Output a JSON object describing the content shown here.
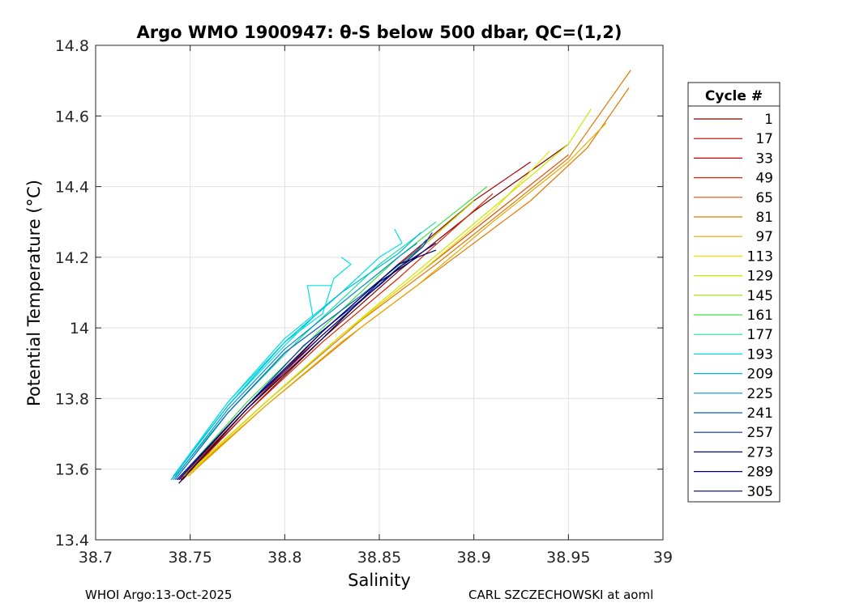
{
  "footer": {
    "left": "WHOI Argo:13-Oct-2025",
    "right": "CARL SZCZECHOWSKI at aoml"
  },
  "chart_data": {
    "type": "line",
    "title": "Argo WMO 1900947: θ-S below 500 dbar,  QC=(1,2)",
    "xlabel": "Salinity",
    "ylabel": "Potential Temperature (°C)",
    "xlim": [
      38.7,
      39
    ],
    "ylim": [
      13.4,
      14.8
    ],
    "xticks": [
      "38.7",
      "38.75",
      "38.8",
      "38.85",
      "38.9",
      "38.95",
      "39"
    ],
    "yticks": [
      "13.4",
      "13.6",
      "13.8",
      "14",
      "14.2",
      "14.4",
      "14.6",
      "14.8"
    ],
    "grid": true,
    "legend": {
      "title": "Cycle #",
      "position": "right-outside",
      "entries": [
        {
          "label": "1",
          "color": "#7a0000"
        },
        {
          "label": "17",
          "color": "#b00000"
        },
        {
          "label": "33",
          "color": "#d00000"
        },
        {
          "label": "49",
          "color": "#e02000"
        },
        {
          "label": "65",
          "color": "#e04a00"
        },
        {
          "label": "81",
          "color": "#e07800"
        },
        {
          "label": "97",
          "color": "#e8a800"
        },
        {
          "label": "113",
          "color": "#f0e000"
        },
        {
          "label": "129",
          "color": "#c8e800"
        },
        {
          "label": "145",
          "color": "#98e000"
        },
        {
          "label": "161",
          "color": "#40e040"
        },
        {
          "label": "177",
          "color": "#20e0a0"
        },
        {
          "label": "193",
          "color": "#00e0e0"
        },
        {
          "label": "209",
          "color": "#00b8e0"
        },
        {
          "label": "225",
          "color": "#0090d0"
        },
        {
          "label": "241",
          "color": "#0060c0"
        },
        {
          "label": "257",
          "color": "#0030b0"
        },
        {
          "label": "273",
          "color": "#000890"
        },
        {
          "label": "289",
          "color": "#000070"
        },
        {
          "label": "305",
          "color": "#000050"
        }
      ]
    },
    "series": [
      {
        "color": "#7a0000",
        "x": [
          38.745,
          38.78,
          38.82,
          38.86,
          38.9,
          38.95
        ],
        "y": [
          13.57,
          13.76,
          13.97,
          14.16,
          14.33,
          14.52
        ]
      },
      {
        "color": "#b00000",
        "x": [
          38.744,
          38.78,
          38.82,
          38.86,
          38.9,
          38.93
        ],
        "y": [
          13.57,
          13.77,
          13.99,
          14.18,
          14.36,
          14.47
        ]
      },
      {
        "color": "#d00000",
        "x": [
          38.745,
          38.78,
          38.82,
          38.86,
          38.9
        ],
        "y": [
          13.57,
          13.77,
          13.98,
          14.17,
          14.36
        ]
      },
      {
        "color": "#e02000",
        "x": [
          38.746,
          38.78,
          38.82,
          38.86,
          38.91
        ],
        "y": [
          13.57,
          13.76,
          13.96,
          14.14,
          14.38
        ]
      },
      {
        "color": "#e04a00",
        "x": [
          38.747,
          38.79,
          38.83,
          38.87,
          38.91,
          38.95
        ],
        "y": [
          13.58,
          13.79,
          13.98,
          14.15,
          14.32,
          14.49
        ]
      },
      {
        "color": "#e07800",
        "x": [
          38.748,
          38.79,
          38.84,
          38.88,
          38.92,
          38.95,
          38.983
        ],
        "y": [
          13.58,
          13.79,
          14.02,
          14.18,
          14.35,
          14.48,
          14.73
        ]
      },
      {
        "color": "#e07800",
        "x": [
          38.748,
          38.79,
          38.84,
          38.88,
          38.93,
          38.96,
          38.982
        ],
        "y": [
          13.58,
          13.78,
          14.0,
          14.16,
          14.36,
          14.51,
          14.68
        ]
      },
      {
        "color": "#e8a800",
        "x": [
          38.749,
          38.79,
          38.83,
          38.87,
          38.91,
          38.95,
          38.97
        ],
        "y": [
          13.58,
          13.78,
          13.96,
          14.12,
          14.3,
          14.47,
          14.58
        ]
      },
      {
        "color": "#f0e000",
        "x": [
          38.748,
          38.79,
          38.83,
          38.87,
          38.91,
          38.94
        ],
        "y": [
          13.58,
          13.79,
          13.98,
          14.15,
          14.33,
          14.5
        ]
      },
      {
        "color": "#c8e800",
        "x": [
          38.747,
          38.79,
          38.83,
          38.87,
          38.91,
          38.95,
          38.962
        ],
        "y": [
          13.58,
          13.79,
          13.98,
          14.16,
          14.34,
          14.52,
          14.62
        ]
      },
      {
        "color": "#98e000",
        "x": [
          38.746,
          38.78,
          38.82,
          38.86,
          38.9
        ],
        "y": [
          13.58,
          13.78,
          13.98,
          14.17,
          14.36
        ]
      },
      {
        "color": "#40e040",
        "x": [
          38.745,
          38.78,
          38.82,
          38.86,
          38.907
        ],
        "y": [
          13.58,
          13.79,
          14.0,
          14.2,
          14.4
        ]
      },
      {
        "color": "#20e0a0",
        "x": [
          38.742,
          38.77,
          38.81,
          38.85,
          38.88
        ],
        "y": [
          13.58,
          13.76,
          13.98,
          14.18,
          14.3
        ]
      },
      {
        "color": "#00e0e0",
        "x": [
          38.741,
          38.77,
          38.8,
          38.815,
          38.812,
          38.825
        ],
        "y": [
          13.58,
          13.78,
          13.95,
          14.03,
          14.12,
          14.12
        ]
      },
      {
        "color": "#00e0e0",
        "x": [
          38.741,
          38.77,
          38.8,
          38.82,
          38.826,
          38.835,
          38.83
        ],
        "y": [
          13.58,
          13.79,
          13.96,
          14.04,
          14.14,
          14.18,
          14.2
        ]
      },
      {
        "color": "#00e0e0",
        "x": [
          38.74,
          38.77,
          38.8,
          38.83,
          38.85,
          38.862,
          38.858
        ],
        "y": [
          13.57,
          13.79,
          13.97,
          14.1,
          14.2,
          14.24,
          14.28
        ]
      },
      {
        "color": "#00b8e0",
        "x": [
          38.74,
          38.77,
          38.8,
          38.83,
          38.86,
          38.872
        ],
        "y": [
          13.57,
          13.78,
          13.96,
          14.1,
          14.21,
          14.27
        ]
      },
      {
        "color": "#0090d0",
        "x": [
          38.741,
          38.77,
          38.8,
          38.83,
          38.86,
          38.87
        ],
        "y": [
          13.57,
          13.77,
          13.94,
          14.07,
          14.2,
          14.24
        ]
      },
      {
        "color": "#0060c0",
        "x": [
          38.742,
          38.77,
          38.8,
          38.84,
          38.87,
          38.875
        ],
        "y": [
          13.57,
          13.76,
          13.93,
          14.09,
          14.22,
          14.25
        ]
      },
      {
        "color": "#0030b0",
        "x": [
          38.743,
          38.78,
          38.81,
          38.85,
          38.873,
          38.878
        ],
        "y": [
          13.57,
          13.78,
          13.95,
          14.12,
          14.23,
          14.27
        ]
      },
      {
        "color": "#000890",
        "x": [
          38.743,
          38.78,
          38.82,
          38.86,
          38.88
        ],
        "y": [
          13.57,
          13.78,
          13.98,
          14.17,
          14.24
        ]
      },
      {
        "color": "#000070",
        "x": [
          38.744,
          38.78,
          38.82,
          38.86,
          38.88
        ],
        "y": [
          13.57,
          13.78,
          13.99,
          14.18,
          14.22
        ]
      },
      {
        "color": "#000050",
        "x": [
          38.744,
          38.78,
          38.82,
          38.85,
          38.87
        ],
        "y": [
          13.56,
          13.77,
          13.97,
          14.13,
          14.2
        ]
      }
    ]
  }
}
